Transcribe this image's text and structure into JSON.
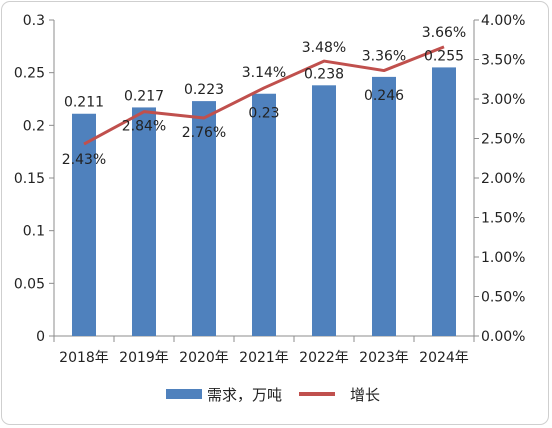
{
  "chart_data": {
    "type": "bar",
    "categories": [
      "2018年",
      "2019年",
      "2020年",
      "2021年",
      "2022年",
      "2023年",
      "2024年"
    ],
    "series": [
      {
        "name": "需求，万吨",
        "type": "bar",
        "axis": "left",
        "color": "#4f81bd",
        "values": [
          0.211,
          0.217,
          0.223,
          0.23,
          0.238,
          0.246,
          0.255
        ],
        "labels": [
          "0.211",
          "0.217",
          "0.223",
          "0.23",
          "0.238",
          "0.246",
          "0.255"
        ]
      },
      {
        "name": "增长",
        "type": "line",
        "axis": "right",
        "color": "#c0504d",
        "values": [
          2.43,
          2.84,
          2.76,
          3.14,
          3.48,
          3.36,
          3.66
        ],
        "labels": [
          "2.43%",
          "2.84%",
          "2.76%",
          "3.14%",
          "3.48%",
          "3.36%",
          "3.66%"
        ]
      }
    ],
    "y_left": {
      "range": [
        0,
        0.3
      ],
      "ticks": [
        0,
        0.05,
        0.1,
        0.15,
        0.2,
        0.25,
        0.3
      ],
      "tick_labels": [
        "0",
        "0.05",
        "0.1",
        "0.15",
        "0.2",
        "0.25",
        "0.3"
      ]
    },
    "y_right": {
      "range": [
        0,
        4
      ],
      "ticks": [
        0,
        0.5,
        1,
        1.5,
        2,
        2.5,
        3,
        3.5,
        4
      ],
      "tick_labels": [
        "0.00%",
        "0.50%",
        "1.00%",
        "1.50%",
        "2.00%",
        "2.50%",
        "3.00%",
        "3.50%",
        "4.00%"
      ]
    },
    "grid": false,
    "legend_position": "bottom"
  }
}
